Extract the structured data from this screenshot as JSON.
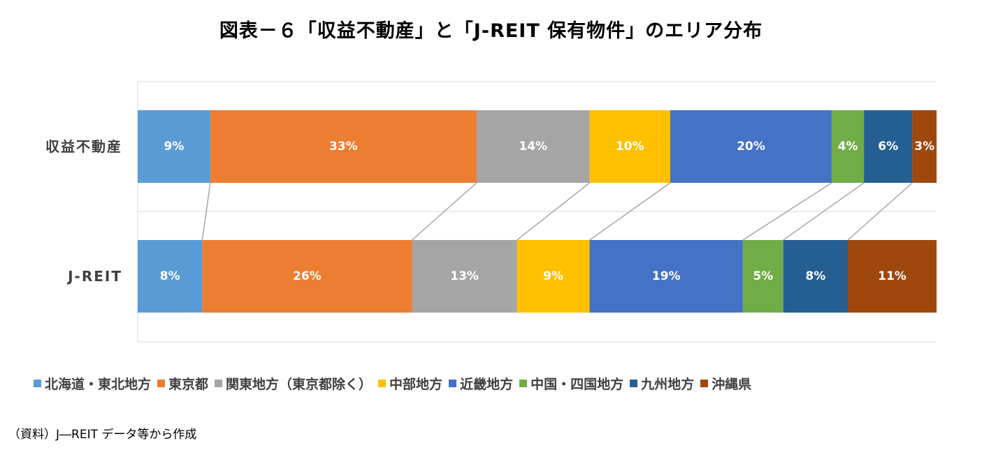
{
  "title": "図表－６「収益不動産」と「J-REIT 保有物件」のエリア分布",
  "source": "（資料）J―REIT データ等から作成",
  "chart_data": {
    "type": "bar",
    "orientation": "horizontal",
    "stacked": "percent",
    "categories": [
      "収益不動産",
      "J-REIT"
    ],
    "series": [
      {
        "name": "北海道・東北地方",
        "color": "#5B9BD5",
        "values": [
          9,
          8
        ],
        "labels": [
          "9%",
          "8%"
        ]
      },
      {
        "name": "東京都",
        "color": "#ED7D31",
        "values": [
          33,
          26
        ],
        "labels": [
          "33%",
          "26%"
        ]
      },
      {
        "name": "関東地方（東京都除く）",
        "color": "#A5A5A5",
        "values": [
          14,
          13
        ],
        "labels": [
          "14%",
          "13%"
        ]
      },
      {
        "name": "中部地方",
        "color": "#FFC000",
        "values": [
          10,
          9
        ],
        "labels": [
          "10%",
          "9%"
        ]
      },
      {
        "name": "近畿地方",
        "color": "#4472C4",
        "values": [
          20,
          19
        ],
        "labels": [
          "20%",
          "19%"
        ]
      },
      {
        "name": "中国・四国地方",
        "color": "#70AD47",
        "values": [
          4,
          5
        ],
        "labels": [
          "4%",
          "5%"
        ]
      },
      {
        "name": "九州地方",
        "color": "#255E91",
        "values": [
          6,
          8
        ],
        "labels": [
          "6%",
          "8%"
        ]
      },
      {
        "name": "沖縄県",
        "color": "#9E480E",
        "values": [
          3,
          11
        ],
        "labels": [
          "3%",
          "11%"
        ]
      }
    ],
    "xlim": [
      0,
      100
    ],
    "series_lines": true,
    "legend_position": "bottom"
  }
}
